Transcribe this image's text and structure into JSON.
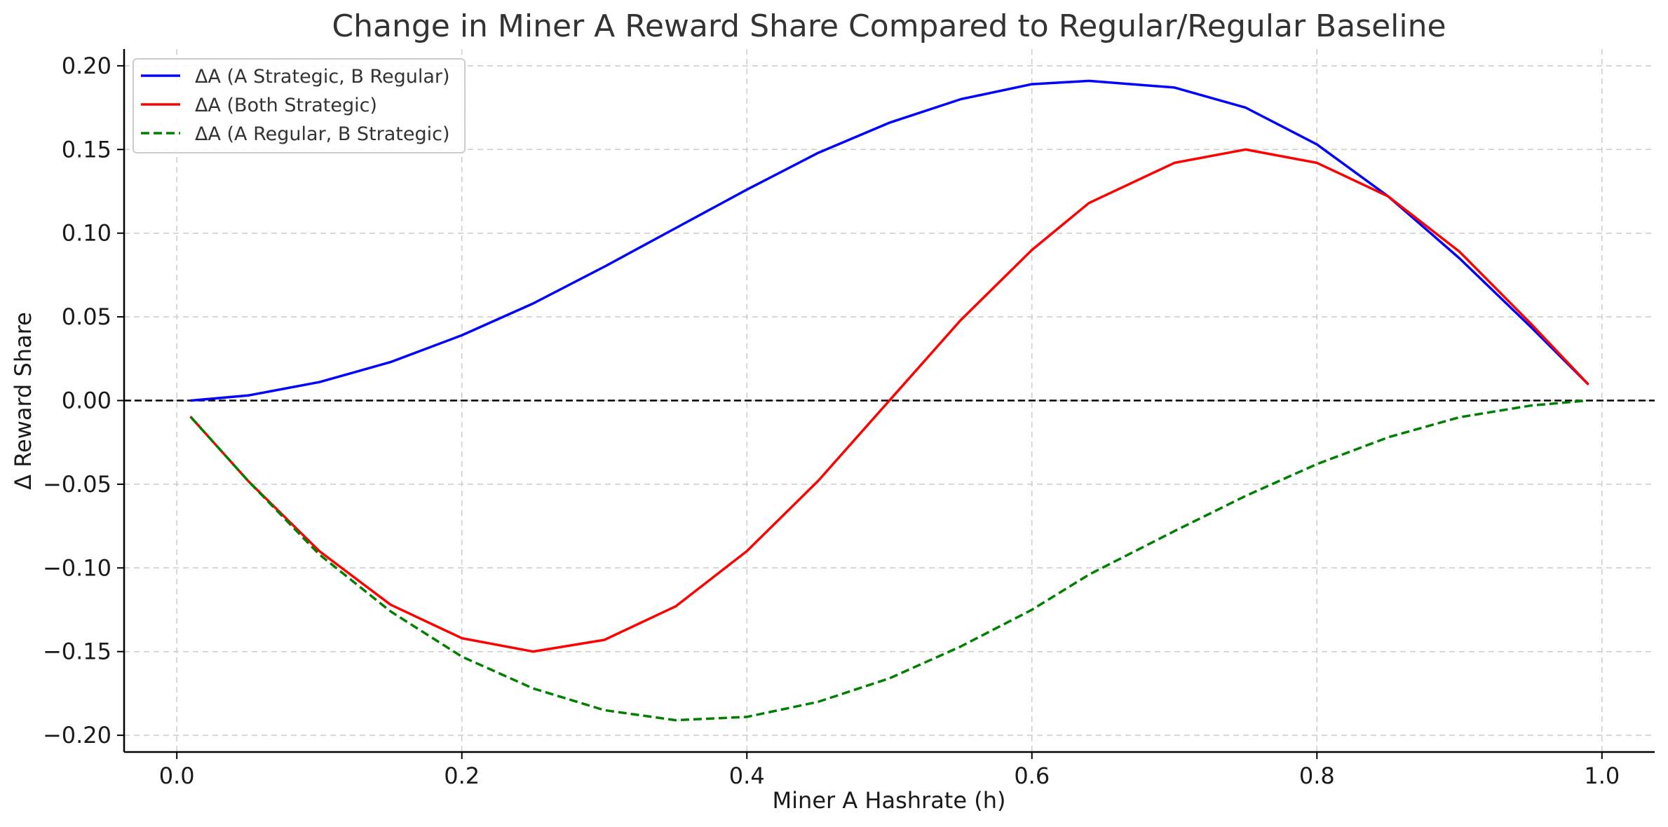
{
  "chart_data": {
    "type": "line",
    "title": "Change in Miner A Reward Share Compared to Regular/Regular Baseline",
    "xlabel": "Miner A Hashrate (h)",
    "ylabel": "Δ Reward Share",
    "xlim": [
      -0.037,
      1.037
    ],
    "ylim": [
      -0.21,
      0.21
    ],
    "xticks": [
      0.0,
      0.2,
      0.4,
      0.6,
      0.8,
      1.0
    ],
    "xtick_labels": [
      "0.0",
      "0.2",
      "0.4",
      "0.6",
      "0.8",
      "1.0"
    ],
    "yticks": [
      0.2,
      0.15,
      0.1,
      0.05,
      0.0,
      -0.05,
      -0.1,
      -0.15,
      -0.2
    ],
    "ytick_labels": [
      "0.20",
      "0.15",
      "0.10",
      "0.05",
      "0.00",
      "−0.05",
      "−0.10",
      "−0.15",
      "−0.20"
    ],
    "grid": true,
    "legend_position": "top-left",
    "reference_line": {
      "y": 0.0,
      "style": "dashed",
      "color": "#000000"
    },
    "x": [
      0.01,
      0.05,
      0.1,
      0.15,
      0.2,
      0.25,
      0.3,
      0.35,
      0.4,
      0.45,
      0.5,
      0.55,
      0.6,
      0.64,
      0.7,
      0.75,
      0.8,
      0.85,
      0.9,
      0.95,
      0.99
    ],
    "series": [
      {
        "name": "ΔA (A Strategic, B Regular)",
        "color": "#0000ff",
        "style": "solid",
        "values": [
          0.0,
          0.003,
          0.011,
          0.023,
          0.039,
          0.058,
          0.08,
          0.103,
          0.126,
          0.148,
          0.166,
          0.18,
          0.189,
          0.191,
          0.187,
          0.175,
          0.153,
          0.122,
          0.085,
          0.044,
          0.01
        ]
      },
      {
        "name": "ΔA (Both Strategic)",
        "color": "#ff0000",
        "style": "solid",
        "values": [
          -0.01,
          -0.048,
          -0.09,
          -0.122,
          -0.142,
          -0.15,
          -0.143,
          -0.123,
          -0.09,
          -0.048,
          0.0,
          0.048,
          0.09,
          0.118,
          0.142,
          0.15,
          0.142,
          0.122,
          0.089,
          0.046,
          0.01
        ]
      },
      {
        "name": "ΔA (A Regular, B Strategic)",
        "color": "#008000",
        "style": "dashed",
        "values": [
          -0.01,
          -0.048,
          -0.092,
          -0.126,
          -0.153,
          -0.172,
          -0.185,
          -0.191,
          -0.189,
          -0.18,
          -0.166,
          -0.147,
          -0.125,
          -0.104,
          -0.078,
          -0.057,
          -0.038,
          -0.022,
          -0.01,
          -0.003,
          0.0
        ]
      }
    ]
  }
}
